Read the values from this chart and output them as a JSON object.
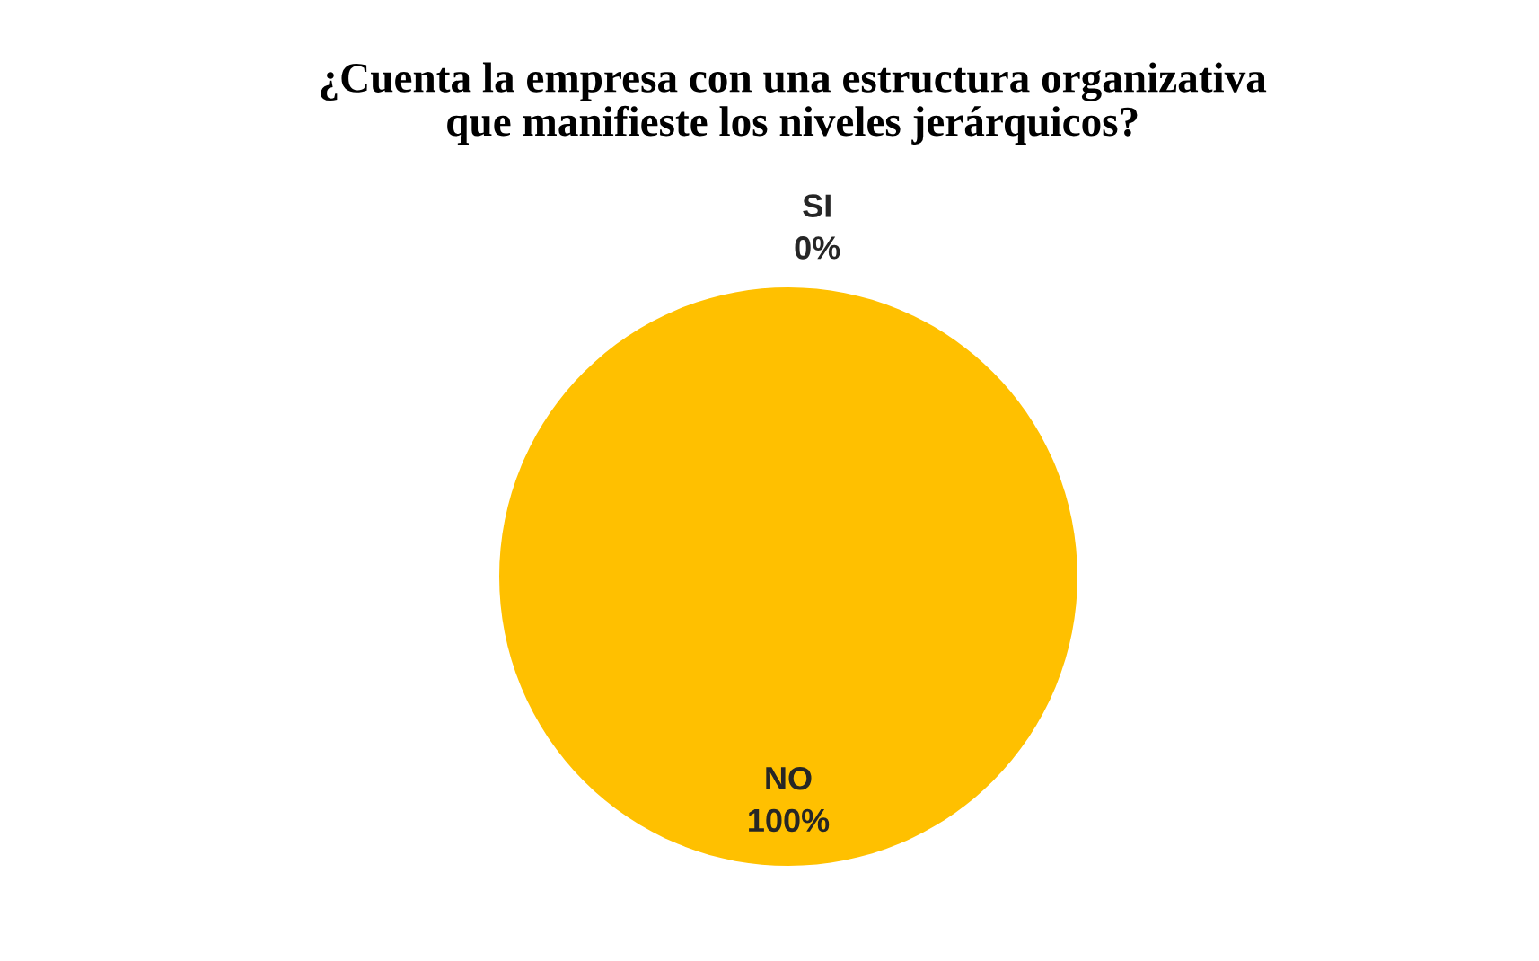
{
  "chart_data": {
    "type": "pie",
    "title": "¿Cuenta la empresa con una estructura organizativa\nque manifieste los niveles jerárquicos?",
    "categories": [
      "SI",
      "NO"
    ],
    "values": [
      0,
      100
    ],
    "colors": [
      "#4f81bd",
      "#ffc000"
    ],
    "value_labels": [
      "0%",
      "100%"
    ],
    "legend": false
  }
}
